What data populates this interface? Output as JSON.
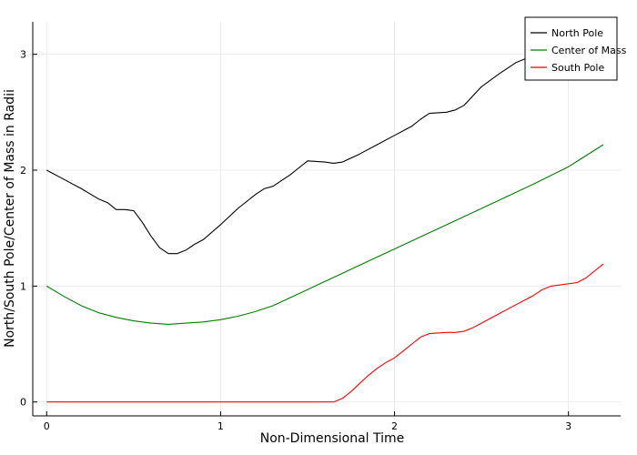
{
  "chart_data": {
    "type": "line",
    "title": "",
    "xlabel": "Non-Dimensional Time",
    "ylabel": "North/South Pole/Center of Mass in Radii",
    "xlim": [
      -0.08,
      3.3
    ],
    "ylim": [
      -0.12,
      3.28
    ],
    "xticks": [
      0,
      1,
      2,
      3
    ],
    "yticks": [
      0,
      1,
      2,
      3
    ],
    "grid": true,
    "legend_position": "top-right",
    "series": [
      {
        "name": "North Pole",
        "color": "#000000",
        "x": [
          0,
          0.1,
          0.2,
          0.3,
          0.35,
          0.4,
          0.45,
          0.5,
          0.55,
          0.6,
          0.65,
          0.7,
          0.75,
          0.8,
          0.85,
          0.9,
          1.0,
          1.1,
          1.2,
          1.25,
          1.3,
          1.4,
          1.45,
          1.5,
          1.6,
          1.65,
          1.7,
          1.8,
          1.9,
          2.0,
          2.1,
          2.15,
          2.2,
          2.3,
          2.35,
          2.4,
          2.45,
          2.5,
          2.6,
          2.7,
          2.75
        ],
        "y": [
          2.0,
          1.92,
          1.84,
          1.75,
          1.72,
          1.66,
          1.66,
          1.65,
          1.55,
          1.43,
          1.33,
          1.28,
          1.28,
          1.31,
          1.36,
          1.4,
          1.53,
          1.67,
          1.79,
          1.84,
          1.86,
          1.96,
          2.02,
          2.08,
          2.07,
          2.06,
          2.07,
          2.14,
          2.22,
          2.3,
          2.38,
          2.44,
          2.49,
          2.5,
          2.52,
          2.56,
          2.64,
          2.72,
          2.83,
          2.93,
          2.96
        ]
      },
      {
        "name": "Center of Mass",
        "color": "#008000",
        "x": [
          0,
          0.1,
          0.2,
          0.3,
          0.4,
          0.5,
          0.6,
          0.7,
          0.8,
          0.9,
          1.0,
          1.1,
          1.2,
          1.3,
          1.4,
          1.5,
          1.6,
          1.7,
          1.8,
          2.0,
          2.2,
          2.4,
          2.6,
          2.8,
          3.0,
          3.2
        ],
        "y": [
          1.0,
          0.91,
          0.83,
          0.77,
          0.73,
          0.7,
          0.68,
          0.67,
          0.68,
          0.69,
          0.71,
          0.74,
          0.78,
          0.83,
          0.9,
          0.97,
          1.04,
          1.11,
          1.18,
          1.32,
          1.46,
          1.6,
          1.74,
          1.88,
          2.03,
          2.22
        ]
      },
      {
        "name": "South Pole",
        "color": "#ff0000",
        "x": [
          0,
          0.5,
          1.0,
          1.5,
          1.65,
          1.7,
          1.75,
          1.8,
          1.85,
          1.9,
          1.95,
          2.0,
          2.05,
          2.1,
          2.15,
          2.2,
          2.3,
          2.35,
          2.4,
          2.45,
          2.5,
          2.6,
          2.7,
          2.8,
          2.85,
          2.9,
          3.0,
          3.05,
          3.1,
          3.2
        ],
        "y": [
          0,
          0,
          0,
          0,
          0,
          0.03,
          0.09,
          0.16,
          0.23,
          0.29,
          0.34,
          0.38,
          0.44,
          0.5,
          0.56,
          0.59,
          0.6,
          0.6,
          0.61,
          0.64,
          0.68,
          0.76,
          0.84,
          0.92,
          0.97,
          1.0,
          1.02,
          1.03,
          1.07,
          1.19
        ]
      }
    ]
  }
}
